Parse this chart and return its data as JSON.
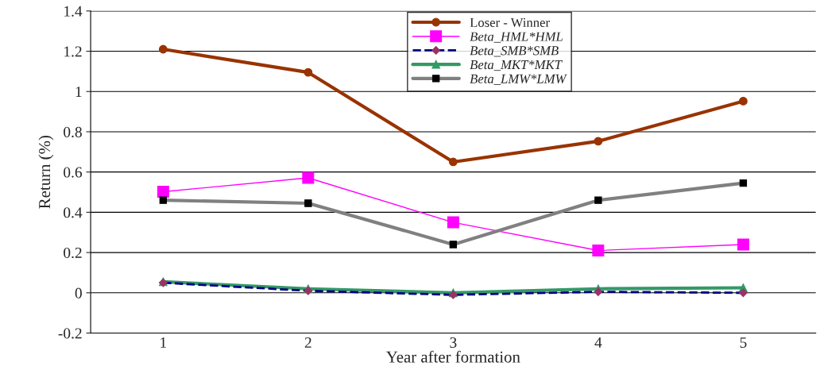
{
  "chart_data": {
    "type": "line",
    "xlabel": "Year after formation",
    "ylabel": "Return (%)",
    "categories": [
      "1",
      "2",
      "3",
      "4",
      "5"
    ],
    "series": [
      {
        "name": "Loser - Winner",
        "color": "#993300",
        "marker": "circle",
        "line_style": "solid",
        "values": [
          1.21,
          1.095,
          0.65,
          0.753,
          0.952
        ]
      },
      {
        "name": "Beta_HML*HML",
        "color": "#ff00ff",
        "marker": "square",
        "line_style": "solid",
        "values": [
          0.502,
          0.571,
          0.35,
          0.21,
          0.24
        ]
      },
      {
        "name": "Beta_SMB*SMB",
        "color": "#000080",
        "marker": "diamond",
        "line_style": "dashed",
        "values": [
          0.05,
          0.01,
          -0.01,
          0.005,
          0.0
        ]
      },
      {
        "name": "Beta_MKT*MKT",
        "color": "#339966",
        "marker": "triangle",
        "line_style": "solid",
        "values": [
          0.055,
          0.02,
          0.0,
          0.02,
          0.025
        ]
      },
      {
        "name": "Beta_LMW*LMW",
        "color": "#808080",
        "marker": "square",
        "line_style": "solid",
        "values": [
          0.46,
          0.445,
          0.24,
          0.46,
          0.545
        ]
      }
    ],
    "ylim": [
      -0.2,
      1.4
    ],
    "yticks": [
      {
        "value": -0.2,
        "label": "-0.2"
      },
      0,
      0.2,
      0.4,
      0.6,
      0.8,
      1,
      1.2,
      1.4
    ],
    "grid": "y",
    "legend": "top"
  }
}
